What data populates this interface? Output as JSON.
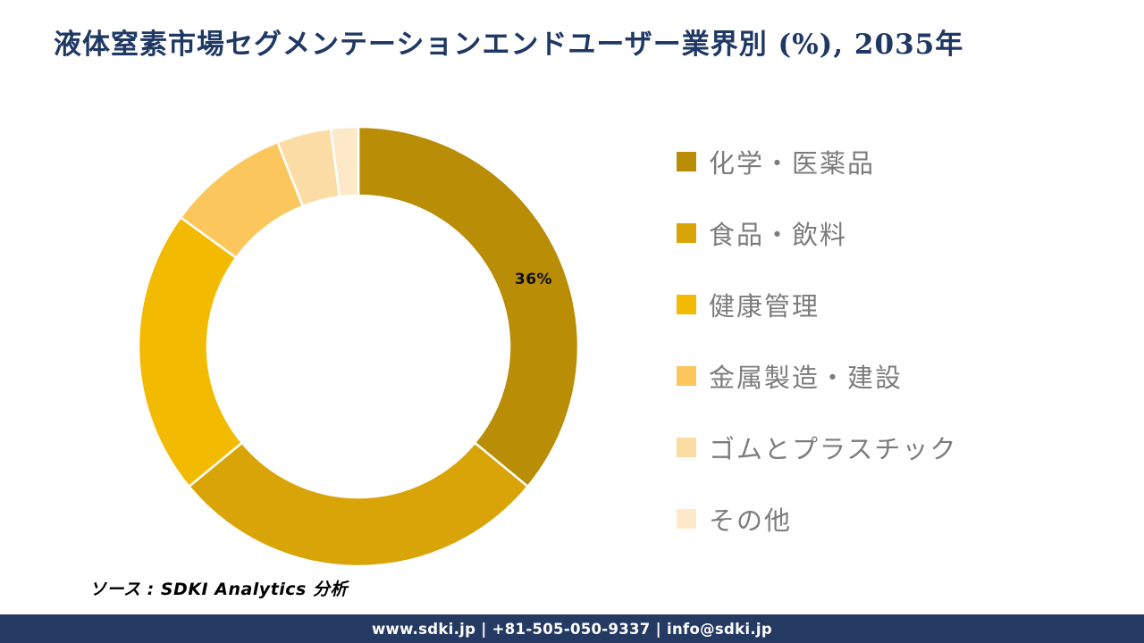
{
  "title": {
    "text": "液体窒素市場セグメンテーションエンドユーザー業界別 (%), 2035年",
    "color": "#1F3864"
  },
  "chart_data": {
    "type": "pie",
    "subtype": "donut",
    "title": "液体窒素市場セグメンテーションエンドユーザー業界別 (%), 2035年",
    "categories": [
      "化学・医薬品",
      "食品・飲料",
      "健康管理",
      "金属製造・建設",
      "ゴムとプラスチック",
      "その他"
    ],
    "values": [
      36,
      28,
      21,
      9,
      4,
      2
    ],
    "unit": "%",
    "colors": [
      "#B98D06",
      "#D9A407",
      "#F2BA00",
      "#FBC75D",
      "#FBDCA4",
      "#FDE8C8"
    ],
    "start_angle_deg": 0,
    "direction": "clockwise",
    "inner_radius_ratio": 0.687,
    "separator_color": "#ffffff",
    "legend_position": "right",
    "shown_label": {
      "text": "36%",
      "segment": "化学・医薬品"
    }
  },
  "source_note": "ソース : SDKI Analytics 分析",
  "footer": {
    "text": "www.sdki.jp | +81-505-050-9337 | info@sdki.jp",
    "background": "#243A63"
  }
}
